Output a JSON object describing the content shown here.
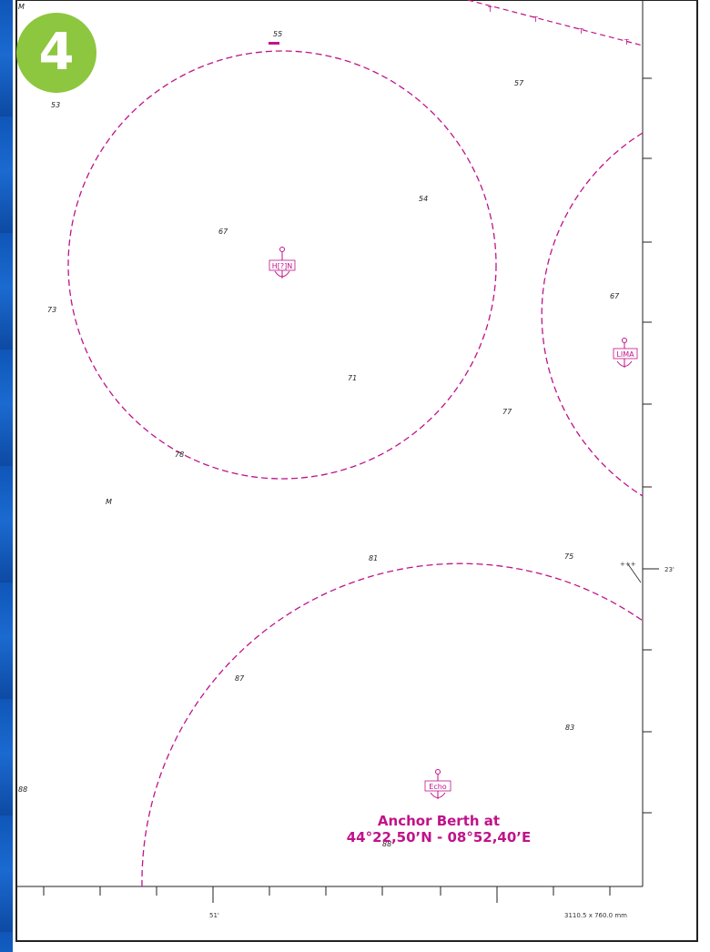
{
  "slide": {
    "badge_number": "4"
  },
  "berths": [
    {
      "name": "Hotel",
      "label": "H[?]N"
    },
    {
      "name": "Lima",
      "label": "LIMA"
    },
    {
      "name": "Echo",
      "label": "Echo"
    }
  ],
  "depth_soundings": [
    "55",
    "53",
    "57",
    "54",
    "67",
    "73",
    "71",
    "67",
    "77",
    "78",
    "M",
    "81",
    "75",
    "87",
    "83",
    "88",
    "M",
    "88"
  ],
  "map": {
    "longitude_label": "51'",
    "latitude_label": "23'",
    "scale_note": "3110.5 x 760.0 mm",
    "wreck_symbol": "+++"
  },
  "caption": {
    "line1": "Anchor Berth at",
    "line2": "44°22,50’N - 08°52,40’E"
  },
  "colors": {
    "berth_magenta": "#c0138a",
    "badge_green": "#8dc63f",
    "background_blue": "#1a4f9c"
  }
}
